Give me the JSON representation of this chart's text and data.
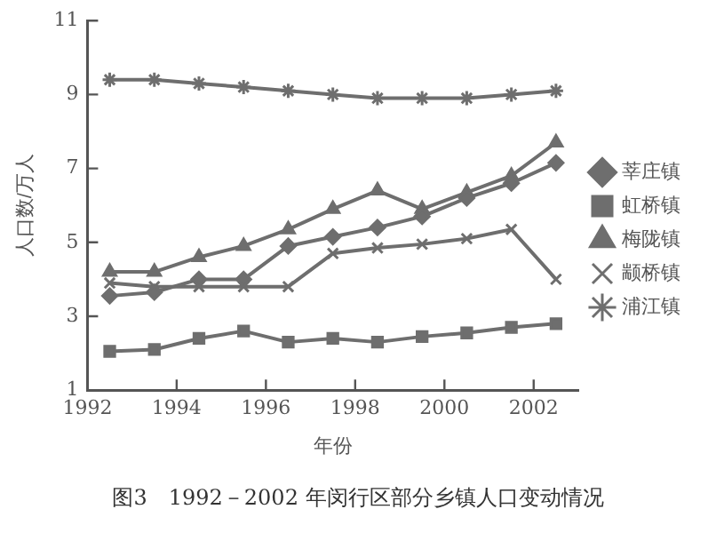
{
  "chart_data": {
    "type": "line",
    "xlabel": "年份",
    "ylabel": "人口数/万人",
    "annotations": [
      "图3　1992－2002 年闵行区部分乡镇人口变动情况"
    ],
    "x": [
      1992.5,
      1993.5,
      1994.5,
      1995.5,
      1996.5,
      1997.5,
      1998.5,
      1999.5,
      2000.5,
      2001.5,
      2002.5
    ],
    "xlim": [
      1992,
      2003
    ],
    "xticks": [
      1992,
      1994,
      1996,
      1998,
      2000,
      2002
    ],
    "ylim": [
      1,
      11
    ],
    "yticks": [
      1,
      3,
      5,
      7,
      9,
      11
    ],
    "grid": false,
    "legend": "right",
    "line_style": "solid",
    "series": [
      {
        "name": "莘庄镇",
        "color": "#6e6e6e",
        "marker": "diamond",
        "values": [
          3.55,
          3.65,
          4.0,
          4.0,
          4.9,
          5.15,
          5.4,
          5.7,
          6.2,
          6.6,
          7.15
        ]
      },
      {
        "name": "虹桥镇",
        "color": "#6e6e6e",
        "marker": "square",
        "values": [
          2.05,
          2.1,
          2.4,
          2.6,
          2.3,
          2.4,
          2.3,
          2.45,
          2.55,
          2.7,
          2.8
        ]
      },
      {
        "name": "梅陇镇",
        "color": "#6e6e6e",
        "marker": "triangle",
        "values": [
          4.2,
          4.2,
          4.6,
          4.9,
          5.35,
          5.9,
          6.4,
          5.9,
          6.35,
          6.8,
          7.7
        ]
      },
      {
        "name": "颛桥镇",
        "color": "#6e6e6e",
        "marker": "cross",
        "values": [
          3.9,
          3.8,
          3.8,
          3.8,
          3.8,
          4.7,
          4.85,
          4.95,
          5.1,
          5.35,
          4.0
        ]
      },
      {
        "name": "浦江镇",
        "color": "#6e6e6e",
        "marker": "cross",
        "values": [
          9.4,
          9.4,
          9.3,
          9.2,
          9.1,
          9.0,
          8.9,
          8.9,
          8.9,
          9.0,
          9.1
        ]
      }
    ]
  }
}
